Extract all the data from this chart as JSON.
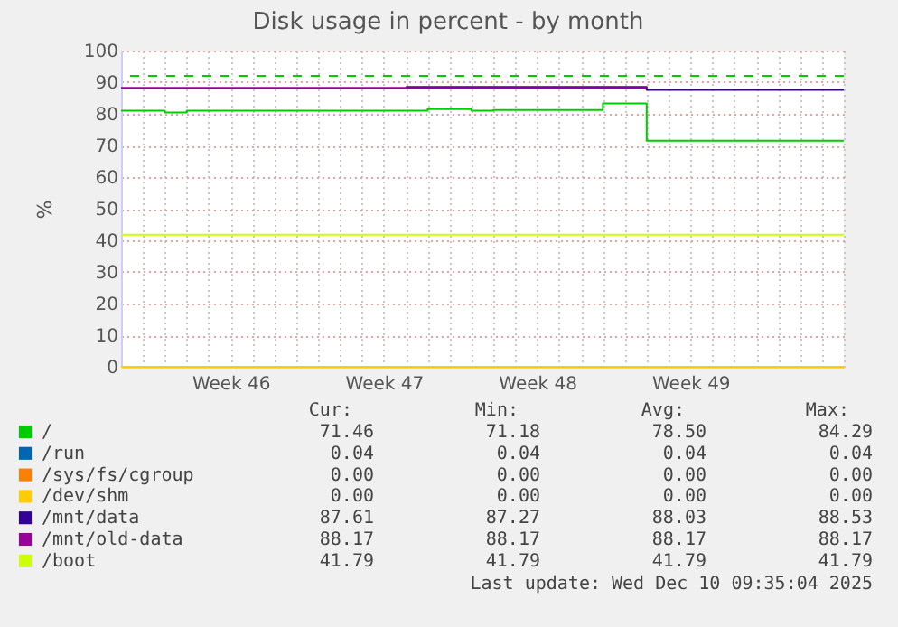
{
  "chart_data": {
    "type": "step",
    "title": "Disk usage in percent - by month",
    "ylabel": "%",
    "categories": [
      null,
      null,
      null,
      null,
      null,
      "Week 46",
      null,
      null,
      null,
      null,
      null,
      null,
      "Week 47",
      null,
      null,
      null,
      null,
      null,
      null,
      "Week 48",
      null,
      null,
      null,
      null,
      null,
      null,
      "Week 49",
      null,
      null,
      null,
      null,
      null,
      null,
      null
    ],
    "ylim": [
      0,
      100
    ],
    "yticks": [
      0,
      10,
      20,
      30,
      40,
      50,
      60,
      70,
      80,
      90,
      100
    ],
    "grid": true,
    "legend": "bottom left",
    "marker": "none",
    "line_style": "solid",
    "series": [
      {
        "name": "/",
        "color": "#00cc00",
        "values": [
          81.0,
          81.0,
          80.4,
          81.0,
          81.0,
          81.0,
          81.0,
          81.0,
          81.0,
          81.0,
          81.0,
          81.0,
          81.0,
          81.0,
          81.5,
          81.5,
          81.0,
          81.2,
          81.2,
          81.2,
          81.2,
          81.2,
          83.3,
          83.3,
          71.5,
          71.5,
          71.5,
          71.5,
          71.5,
          71.5,
          71.5,
          71.5,
          71.5,
          71.5
        ]
      },
      {
        "name": "/run",
        "color": "#0066b3",
        "values": [
          null,
          null,
          null,
          null,
          null,
          null,
          null,
          null,
          null,
          null,
          null,
          null,
          null,
          null,
          null,
          null,
          null,
          null,
          null,
          null,
          null,
          null,
          null,
          null,
          null,
          null,
          null,
          null,
          null,
          null,
          null,
          null,
          null,
          null
        ]
      },
      {
        "name": "/sys/fs/cgroup",
        "color": "#ff8000",
        "values": [
          null,
          null,
          null,
          null,
          null,
          null,
          null,
          null,
          null,
          null,
          null,
          null,
          null,
          null,
          null,
          null,
          null,
          null,
          null,
          null,
          null,
          null,
          null,
          null,
          null,
          null,
          null,
          null,
          null,
          null,
          null,
          null,
          null,
          null
        ]
      },
      {
        "name": "/dev/shm",
        "color": "#ffcc00",
        "values": [
          0,
          0,
          0,
          0,
          0,
          0,
          0,
          0,
          0,
          0,
          0,
          0,
          0,
          0,
          0,
          0,
          0,
          0,
          0,
          0,
          0,
          0,
          0,
          0,
          0,
          0,
          0,
          0,
          0,
          0,
          0,
          0,
          0,
          0
        ]
      },
      {
        "name": "/mnt/data",
        "color": "#330099",
        "values": [
          null,
          null,
          null,
          null,
          null,
          null,
          null,
          null,
          null,
          null,
          null,
          null,
          null,
          88.5,
          88.5,
          88.5,
          88.5,
          88.5,
          88.5,
          88.5,
          88.5,
          88.5,
          88.5,
          88.5,
          87.6,
          87.6,
          87.6,
          87.6,
          87.6,
          87.6,
          87.6,
          87.6,
          87.6,
          87.6
        ]
      },
      {
        "name": "/mnt/old-data",
        "color": "#990099",
        "values": [
          88.2,
          88.2,
          88.2,
          88.2,
          88.2,
          88.2,
          88.2,
          88.2,
          88.2,
          88.2,
          88.2,
          88.2,
          88.2,
          88.2,
          88.2,
          88.2,
          88.2,
          88.2,
          88.2,
          88.2,
          88.2,
          88.2,
          88.2,
          88.2,
          88.2,
          null,
          null,
          null,
          null,
          null,
          null,
          null,
          null,
          null
        ]
      },
      {
        "name": "/boot",
        "color": "#ccff00",
        "values": [
          41.8,
          41.8,
          41.8,
          41.8,
          41.8,
          41.8,
          41.8,
          41.8,
          41.8,
          41.8,
          41.8,
          41.8,
          41.8,
          41.8,
          41.8,
          41.8,
          41.8,
          41.8,
          41.8,
          41.8,
          41.8,
          41.8,
          41.8,
          41.8,
          41.8,
          41.8,
          41.8,
          41.8,
          41.8,
          41.8,
          41.8,
          41.8,
          41.8,
          41.8
        ]
      }
    ],
    "ref_lines": [
      {
        "axis": "y",
        "value": 92,
        "color": "#00cc00",
        "line_style": "dashed"
      }
    ],
    "annotations": [
      "Cur:",
      "Min:",
      "Avg:",
      "Max:",
      "71.46",
      "71.18",
      "78.50",
      "84.29",
      "0.04",
      "0.04",
      "0.04",
      "0.04",
      "0.00",
      "0.00",
      "0.00",
      "0.00",
      "0.00",
      "0.00",
      "0.00",
      "0.00",
      "87.61",
      "87.27",
      "88.03",
      "88.53",
      "88.17",
      "88.17",
      "88.17",
      "88.17",
      "41.79",
      "41.79",
      "41.79",
      "41.79",
      "Last update: Wed Dec 10 09:35:04 2025"
    ]
  }
}
